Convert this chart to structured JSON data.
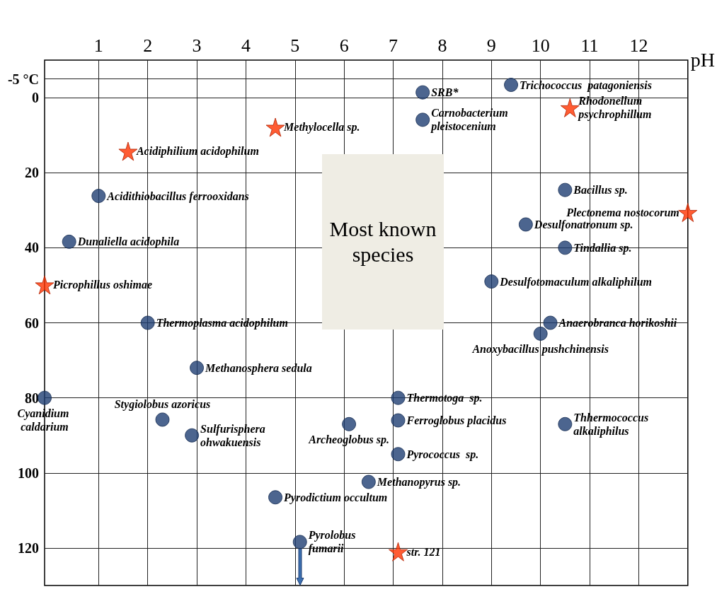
{
  "chart_data": {
    "type": "scatter",
    "xlabel": "pH",
    "xlim": [
      -0.1,
      13
    ],
    "xticks": [
      1,
      2,
      3,
      4,
      5,
      6,
      7,
      8,
      9,
      10,
      11,
      12
    ],
    "ylim": [
      130,
      -10
    ],
    "yticks": [
      {
        "value": -5,
        "label": "-5 °C"
      },
      0,
      20,
      40,
      60,
      80,
      100,
      120
    ],
    "grid": true,
    "series": [
      {
        "marker": "circle",
        "color": "#1f3f73",
        "x": [
          7.6,
          9.4,
          7.6,
          1.0,
          10.5,
          9.7,
          0.4,
          10.5,
          9.0,
          2.0,
          10.2,
          10.0,
          3.0,
          -0.1,
          7.1,
          2.3,
          7.1,
          6.1,
          10.5,
          2.9,
          7.1,
          6.5,
          4.6,
          5.1
        ],
        "values": [
          -1.4,
          -3.4,
          5.9,
          26.2,
          24.6,
          33.8,
          38.4,
          40,
          49,
          60,
          60,
          62.9,
          72,
          80,
          80,
          85.8,
          86,
          87,
          87,
          90,
          95,
          102.4,
          106.5,
          118.4
        ]
      },
      {
        "marker": "star",
        "color": "#ff3300",
        "x": [
          10.6,
          4.6,
          1.6,
          13.0,
          -0.1,
          7.1
        ],
        "values": [
          2.7,
          7.9,
          14.3,
          30.6,
          49.9,
          121
        ]
      }
    ],
    "annotations": [
      {
        "text": "SRB*",
        "x": 7.6,
        "y": -1.4
      },
      {
        "text": "Trichococcus  patagoniensis",
        "x": 9.4,
        "y": -3.4
      },
      {
        "text": "Carnobacterium pleistocenium",
        "x": 7.6,
        "y": 5.9
      },
      {
        "text": "Acidithiobacillus ferrooxidans",
        "x": 1.0,
        "y": 26.2
      },
      {
        "text": "Bacillus sp.",
        "x": 10.5,
        "y": 24.6
      },
      {
        "text": "Desulfonatronum sp.",
        "x": 9.7,
        "y": 33.8
      },
      {
        "text": "Dunaliella acidophila",
        "x": 0.4,
        "y": 38.4
      },
      {
        "text": "Tindallia sp.",
        "x": 10.5,
        "y": 40
      },
      {
        "text": "Desulfotomaculum alkaliphilum",
        "x": 9.0,
        "y": 49
      },
      {
        "text": "Thermoplasma acidophilum",
        "x": 2.0,
        "y": 60
      },
      {
        "text": "Anaerobranca horikoshii",
        "x": 10.2,
        "y": 60
      },
      {
        "text": "Anoxybacillus pushchinensis",
        "x": 10.0,
        "y": 62.9
      },
      {
        "text": "Methanosphera sedula",
        "x": 3.0,
        "y": 72
      },
      {
        "text": "Cyanidium caldarium",
        "x": -0.1,
        "y": 80
      },
      {
        "text": "Thermotoga  sp.",
        "x": 7.1,
        "y": 80
      },
      {
        "text": "Stygiolobus azoricus",
        "x": 2.3,
        "y": 85.8
      },
      {
        "text": "Ferroglobus placidus",
        "x": 7.1,
        "y": 86
      },
      {
        "text": "Archeoglobus sp.",
        "x": 6.1,
        "y": 87
      },
      {
        "text": "Thhermococcus alkaliphilus",
        "x": 10.5,
        "y": 87
      },
      {
        "text": "Sulfurisphera ohwakuensis",
        "x": 2.9,
        "y": 90
      },
      {
        "text": "Pyrococcus  sp.",
        "x": 7.1,
        "y": 95
      },
      {
        "text": "Methanopyrus sp.",
        "x": 6.5,
        "y": 102.4
      },
      {
        "text": "Pyrodictium occultum",
        "x": 4.6,
        "y": 106.5
      },
      {
        "text": "Pyrolobus fumarii",
        "x": 5.1,
        "y": 118.4
      },
      {
        "text": "Rhodonellum psychrophillum",
        "x": 10.6,
        "y": 2.7
      },
      {
        "text": "Methylocella sp.",
        "x": 4.6,
        "y": 7.9
      },
      {
        "text": "Acidiphilium acidophilum",
        "x": 1.6,
        "y": 14.3
      },
      {
        "text": "Plectonema nostocorum",
        "x": 13.0,
        "y": 30.6
      },
      {
        "text": "Picrophillus oshimae",
        "x": -0.1,
        "y": 49.9
      },
      {
        "text": "str. 121",
        "x": 7.1,
        "y": 121
      },
      "Most known species"
    ]
  }
}
